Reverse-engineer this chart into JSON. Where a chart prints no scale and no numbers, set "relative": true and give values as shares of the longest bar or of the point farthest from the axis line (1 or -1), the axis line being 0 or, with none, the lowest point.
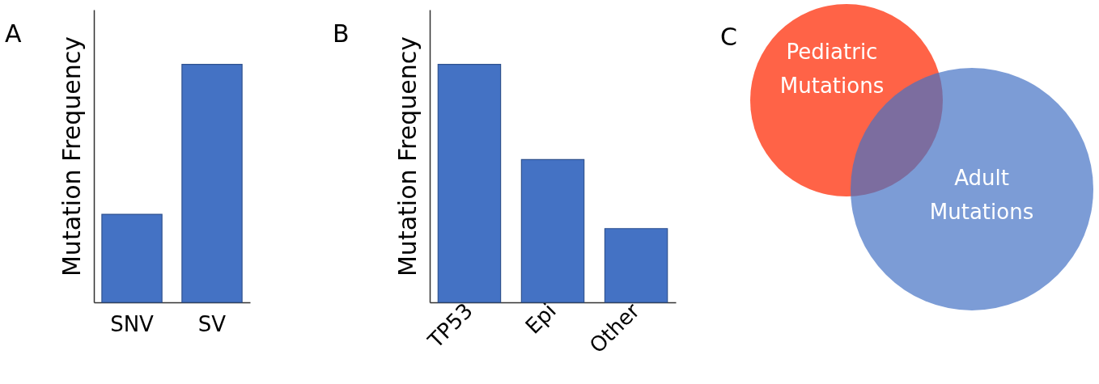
{
  "chart_data": [
    {
      "type": "bar",
      "title": "A",
      "ylabel": "Mutation Frequency",
      "categories": [
        "SNV",
        "SV"
      ],
      "values": [
        0.37,
        1
      ],
      "color": "#4472c4",
      "relative": true
    },
    {
      "type": "bar",
      "title": "B",
      "ylabel": "Mutation Frequency",
      "categories": [
        "TP53",
        "Epi",
        "Other"
      ],
      "values": [
        1,
        0.6,
        0.31
      ],
      "color": "#4472c4",
      "relative": true
    },
    {
      "type": "other",
      "title": "C",
      "annotations": [
        "Pediatric Mutations",
        "Adult Mutations"
      ],
      "colors": [
        "#ff6347",
        "#4472c4"
      ]
    }
  ]
}
